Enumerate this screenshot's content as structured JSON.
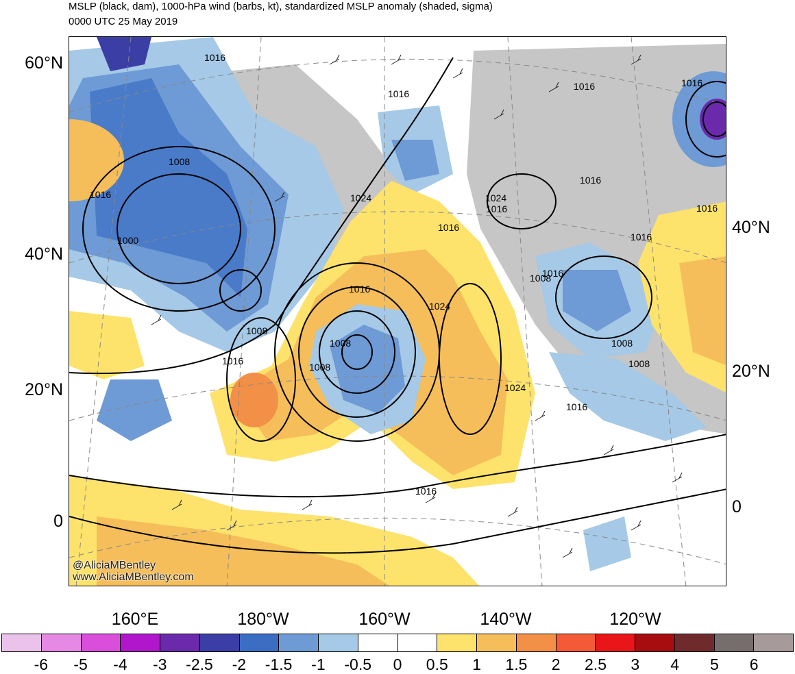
{
  "header": {
    "title": "MSLP (black, dam), 1000-hPa wind (barbs, kt), standardized MSLP anomaly (shaded, sigma)",
    "valid_time": "0000 UTC 25 May 2019"
  },
  "credits": [
    "@AliciaMBentley",
    "www.AliciaMBentley.com"
  ],
  "lat_labels_left": [
    "60°N",
    "40°N",
    "20°N",
    "0"
  ],
  "lat_labels_right": [
    "40°N",
    "20°N",
    "0"
  ],
  "lon_labels": [
    "160°E",
    "180°W",
    "160°W",
    "140°W",
    "120°W"
  ],
  "contour_labels": [
    "1016",
    "1016",
    "1016",
    "1008",
    "1016",
    "1000",
    "1008",
    "1016",
    "1008",
    "1016",
    "1008",
    "1024",
    "1016",
    "1024",
    "1024",
    "1016",
    "1016",
    "1024",
    "1016",
    "1016",
    "1016",
    "1008",
    "1008",
    "1008",
    "1016",
    "1016",
    "1016"
  ],
  "colorbar": {
    "colors": [
      "#ebc3ea",
      "#e589e4",
      "#d94fdc",
      "#b216cc",
      "#6b2aac",
      "#3b3ea5",
      "#3b6ec3",
      "#6e9ad5",
      "#a5c9e6",
      "#ffffff",
      "#ffffff",
      "#fde36b",
      "#f5be5a",
      "#f39047",
      "#f35b36",
      "#e81619",
      "#a70d0f",
      "#6f2b2b",
      "#766d6d",
      "#a69a9a"
    ],
    "labels": [
      "-6",
      "-5",
      "-4",
      "-3",
      "-2.5",
      "-2",
      "-1.5",
      "-1",
      "-0.5",
      "0",
      "0.5",
      "1",
      "1.5",
      "2",
      "2.5",
      "3",
      "4",
      "5",
      "6"
    ]
  }
}
